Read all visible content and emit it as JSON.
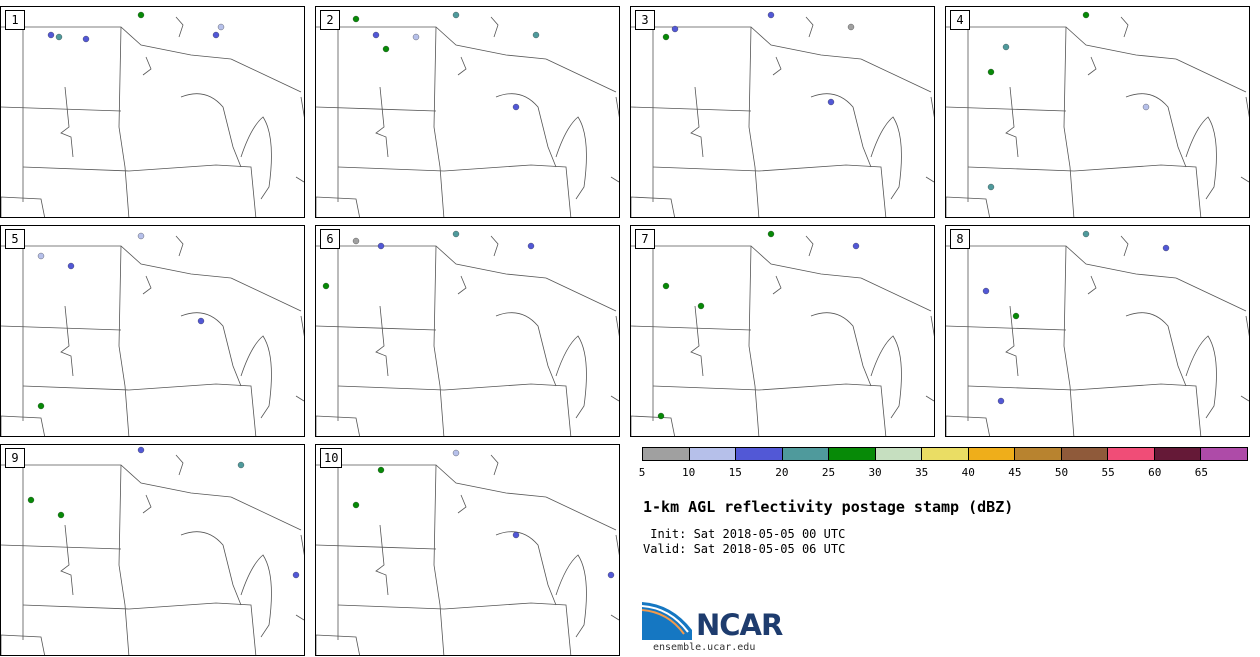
{
  "title": "1-km AGL reflectivity postage stamp (dBZ)",
  "init_label": " Init: Sat 2018-05-05 00 UTC",
  "valid_label": "Valid: Sat 2018-05-05 06 UTC",
  "logo_text": "NCAR",
  "site": "ensemble.ucar.edu",
  "members": [
    "1",
    "2",
    "3",
    "4",
    "5",
    "6",
    "7",
    "8",
    "9",
    "10"
  ],
  "colorbar": {
    "ticks": [
      "5",
      "10",
      "15",
      "20",
      "25",
      "30",
      "35",
      "40",
      "45",
      "50",
      "55",
      "60",
      "65"
    ],
    "colors": [
      "#a0a0a0",
      "#b6c0ea",
      "#5258d6",
      "#4f9a9c",
      "#078a07",
      "#c6dfc0",
      "#eadd64",
      "#efae1a",
      "#b8832f",
      "#8f5a3a",
      "#f04d77",
      "#651937",
      "#ae4ba8"
    ]
  }
}
